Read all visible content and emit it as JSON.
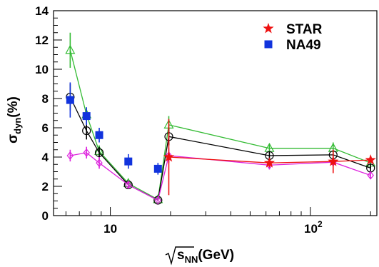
{
  "chart_data": {
    "type": "scatter",
    "xscale": "log",
    "xlabel": {
      "main": "(GeV)",
      "sub": "NN",
      "radicand": "s"
    },
    "ylabel": {
      "main": "(%)",
      "sub": "dyn",
      "symbol": "σ"
    },
    "xlim": [
      5.2,
      215
    ],
    "ylim": [
      0,
      14
    ],
    "x_ticks": [
      {
        "value": 10,
        "base": "10",
        "exp": ""
      },
      {
        "value": 100,
        "base": "10",
        "exp": "2"
      }
    ],
    "y_ticks": [
      "0",
      "2",
      "4",
      "6",
      "8",
      "10",
      "12",
      "14"
    ],
    "legend": {
      "position": "top-right",
      "entries": [
        {
          "label": "STAR",
          "color": "#ee1111",
          "marker": "star"
        },
        {
          "label": "NA49",
          "color": "#1133dd",
          "marker": "square"
        }
      ]
    },
    "series": [
      {
        "name": "NA49",
        "marker": "square",
        "color": "#1133dd",
        "connect": false,
        "points": [
          {
            "x": 6.3,
            "y": 7.9,
            "err": 1.2
          },
          {
            "x": 7.6,
            "y": 6.8,
            "err": 0.6
          },
          {
            "x": 8.8,
            "y": 5.5,
            "err": 0.5
          },
          {
            "x": 12.3,
            "y": 3.7,
            "err": 0.5
          },
          {
            "x": 17.3,
            "y": 3.2,
            "err": 0.4
          }
        ]
      },
      {
        "name": "STAR",
        "marker": "star",
        "color": "#ee1111",
        "connect": true,
        "points": [
          {
            "x": 19.6,
            "y": 4.0,
            "err": 2.6
          },
          {
            "x": 62.4,
            "y": 3.6,
            "err": 0.3
          },
          {
            "x": 130,
            "y": 3.7,
            "err": 0.8
          },
          {
            "x": 200,
            "y": 3.8,
            "err": 0.1
          }
        ]
      },
      {
        "marker": "open-triangle",
        "color": "#33bb33",
        "connect": true,
        "points": [
          {
            "x": 6.3,
            "y": 11.3,
            "err": 1.2
          },
          {
            "x": 7.6,
            "y": 6.9,
            "err": 0.5
          },
          {
            "x": 8.8,
            "y": 4.4,
            "err": 0.4
          },
          {
            "x": 12.3,
            "y": 2.2,
            "err": 0.2
          },
          {
            "x": 17.3,
            "y": 1.1,
            "err": 0.1
          },
          {
            "x": 19.6,
            "y": 6.2,
            "err": 0.6
          },
          {
            "x": 62.4,
            "y": 4.6,
            "err": 0.3
          },
          {
            "x": 130,
            "y": 4.6,
            "err": 0.4
          },
          {
            "x": 200,
            "y": 3.6,
            "err": 0.3
          }
        ]
      },
      {
        "marker": "open-circle",
        "color": "#000000",
        "connect": true,
        "points": [
          {
            "x": 6.3,
            "y": 8.1,
            "err": 0.9
          },
          {
            "x": 7.6,
            "y": 5.8,
            "err": 0.6
          },
          {
            "x": 8.8,
            "y": 4.3,
            "err": 0.4
          },
          {
            "x": 12.3,
            "y": 2.1,
            "err": 0.2
          },
          {
            "x": 17.3,
            "y": 1.05,
            "err": 0.1
          },
          {
            "x": 19.6,
            "y": 5.4,
            "err": 0.6
          },
          {
            "x": 62.4,
            "y": 4.1,
            "err": 0.3
          },
          {
            "x": 130,
            "y": 4.15,
            "err": 0.3
          },
          {
            "x": 200,
            "y": 3.25,
            "err": 0.25
          }
        ]
      },
      {
        "marker": "open-diamond",
        "color": "#dd22dd",
        "connect": true,
        "points": [
          {
            "x": 6.3,
            "y": 4.1,
            "err": 0.4
          },
          {
            "x": 7.6,
            "y": 4.3,
            "err": 0.4
          },
          {
            "x": 8.8,
            "y": 3.6,
            "err": 0.4
          },
          {
            "x": 12.3,
            "y": 2.1,
            "err": 0.2
          },
          {
            "x": 17.3,
            "y": 1.05,
            "err": 0.1
          },
          {
            "x": 19.6,
            "y": 4.1,
            "err": 0.5
          },
          {
            "x": 62.4,
            "y": 3.45,
            "err": 0.3
          },
          {
            "x": 130,
            "y": 3.65,
            "err": 0.3
          },
          {
            "x": 200,
            "y": 2.75,
            "err": 0.25
          }
        ]
      }
    ]
  }
}
